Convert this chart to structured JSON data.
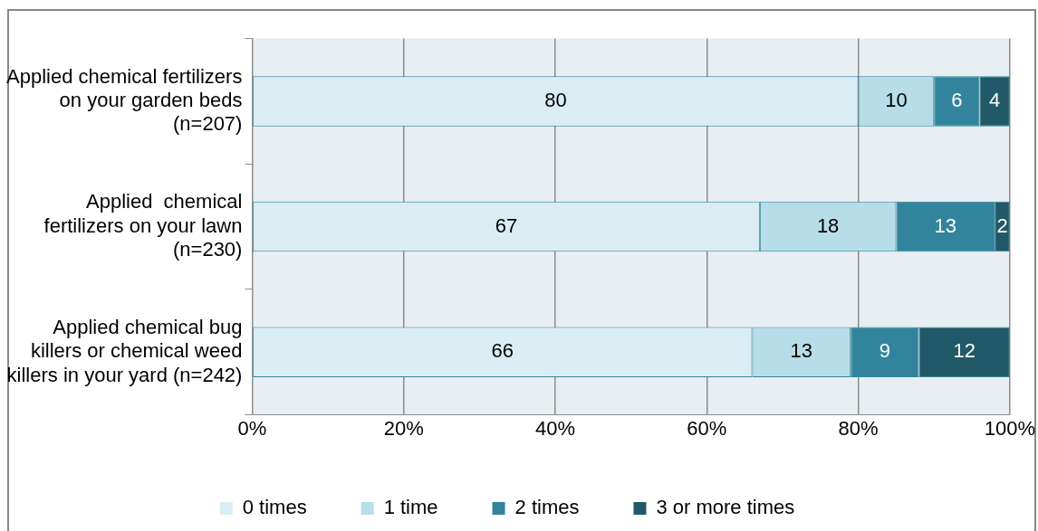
{
  "chart_data": {
    "type": "bar",
    "orientation": "horizontal",
    "stacked": true,
    "categories": [
      "Applied chemical fertilizers on your garden beds (n=207)",
      "Applied  chemical fertilizers on your lawn (n=230)",
      "Applied chemical bug killers or chemical weed killers in your yard (n=242)"
    ],
    "series": [
      {
        "name": "0 times",
        "color": "#daedf3",
        "values": [
          80,
          67,
          66
        ]
      },
      {
        "name": "1 time",
        "color": "#b7dde8",
        "values": [
          10,
          18,
          13
        ]
      },
      {
        "name": "2 times",
        "color": "#31849b",
        "values": [
          6,
          13,
          9
        ]
      },
      {
        "name": "3 or more times",
        "color": "#215968",
        "values": [
          4,
          2,
          12
        ]
      }
    ],
    "xlim": [
      0,
      100
    ],
    "xticks": [
      {
        "value": 0,
        "label": "0%"
      },
      {
        "value": 20,
        "label": "20%"
      },
      {
        "value": 40,
        "label": "40%"
      },
      {
        "value": 60,
        "label": "60%"
      },
      {
        "value": 80,
        "label": "80%"
      },
      {
        "value": 100,
        "label": "100%"
      }
    ],
    "grid": "x",
    "legend": "bottom",
    "data_labels": true
  }
}
